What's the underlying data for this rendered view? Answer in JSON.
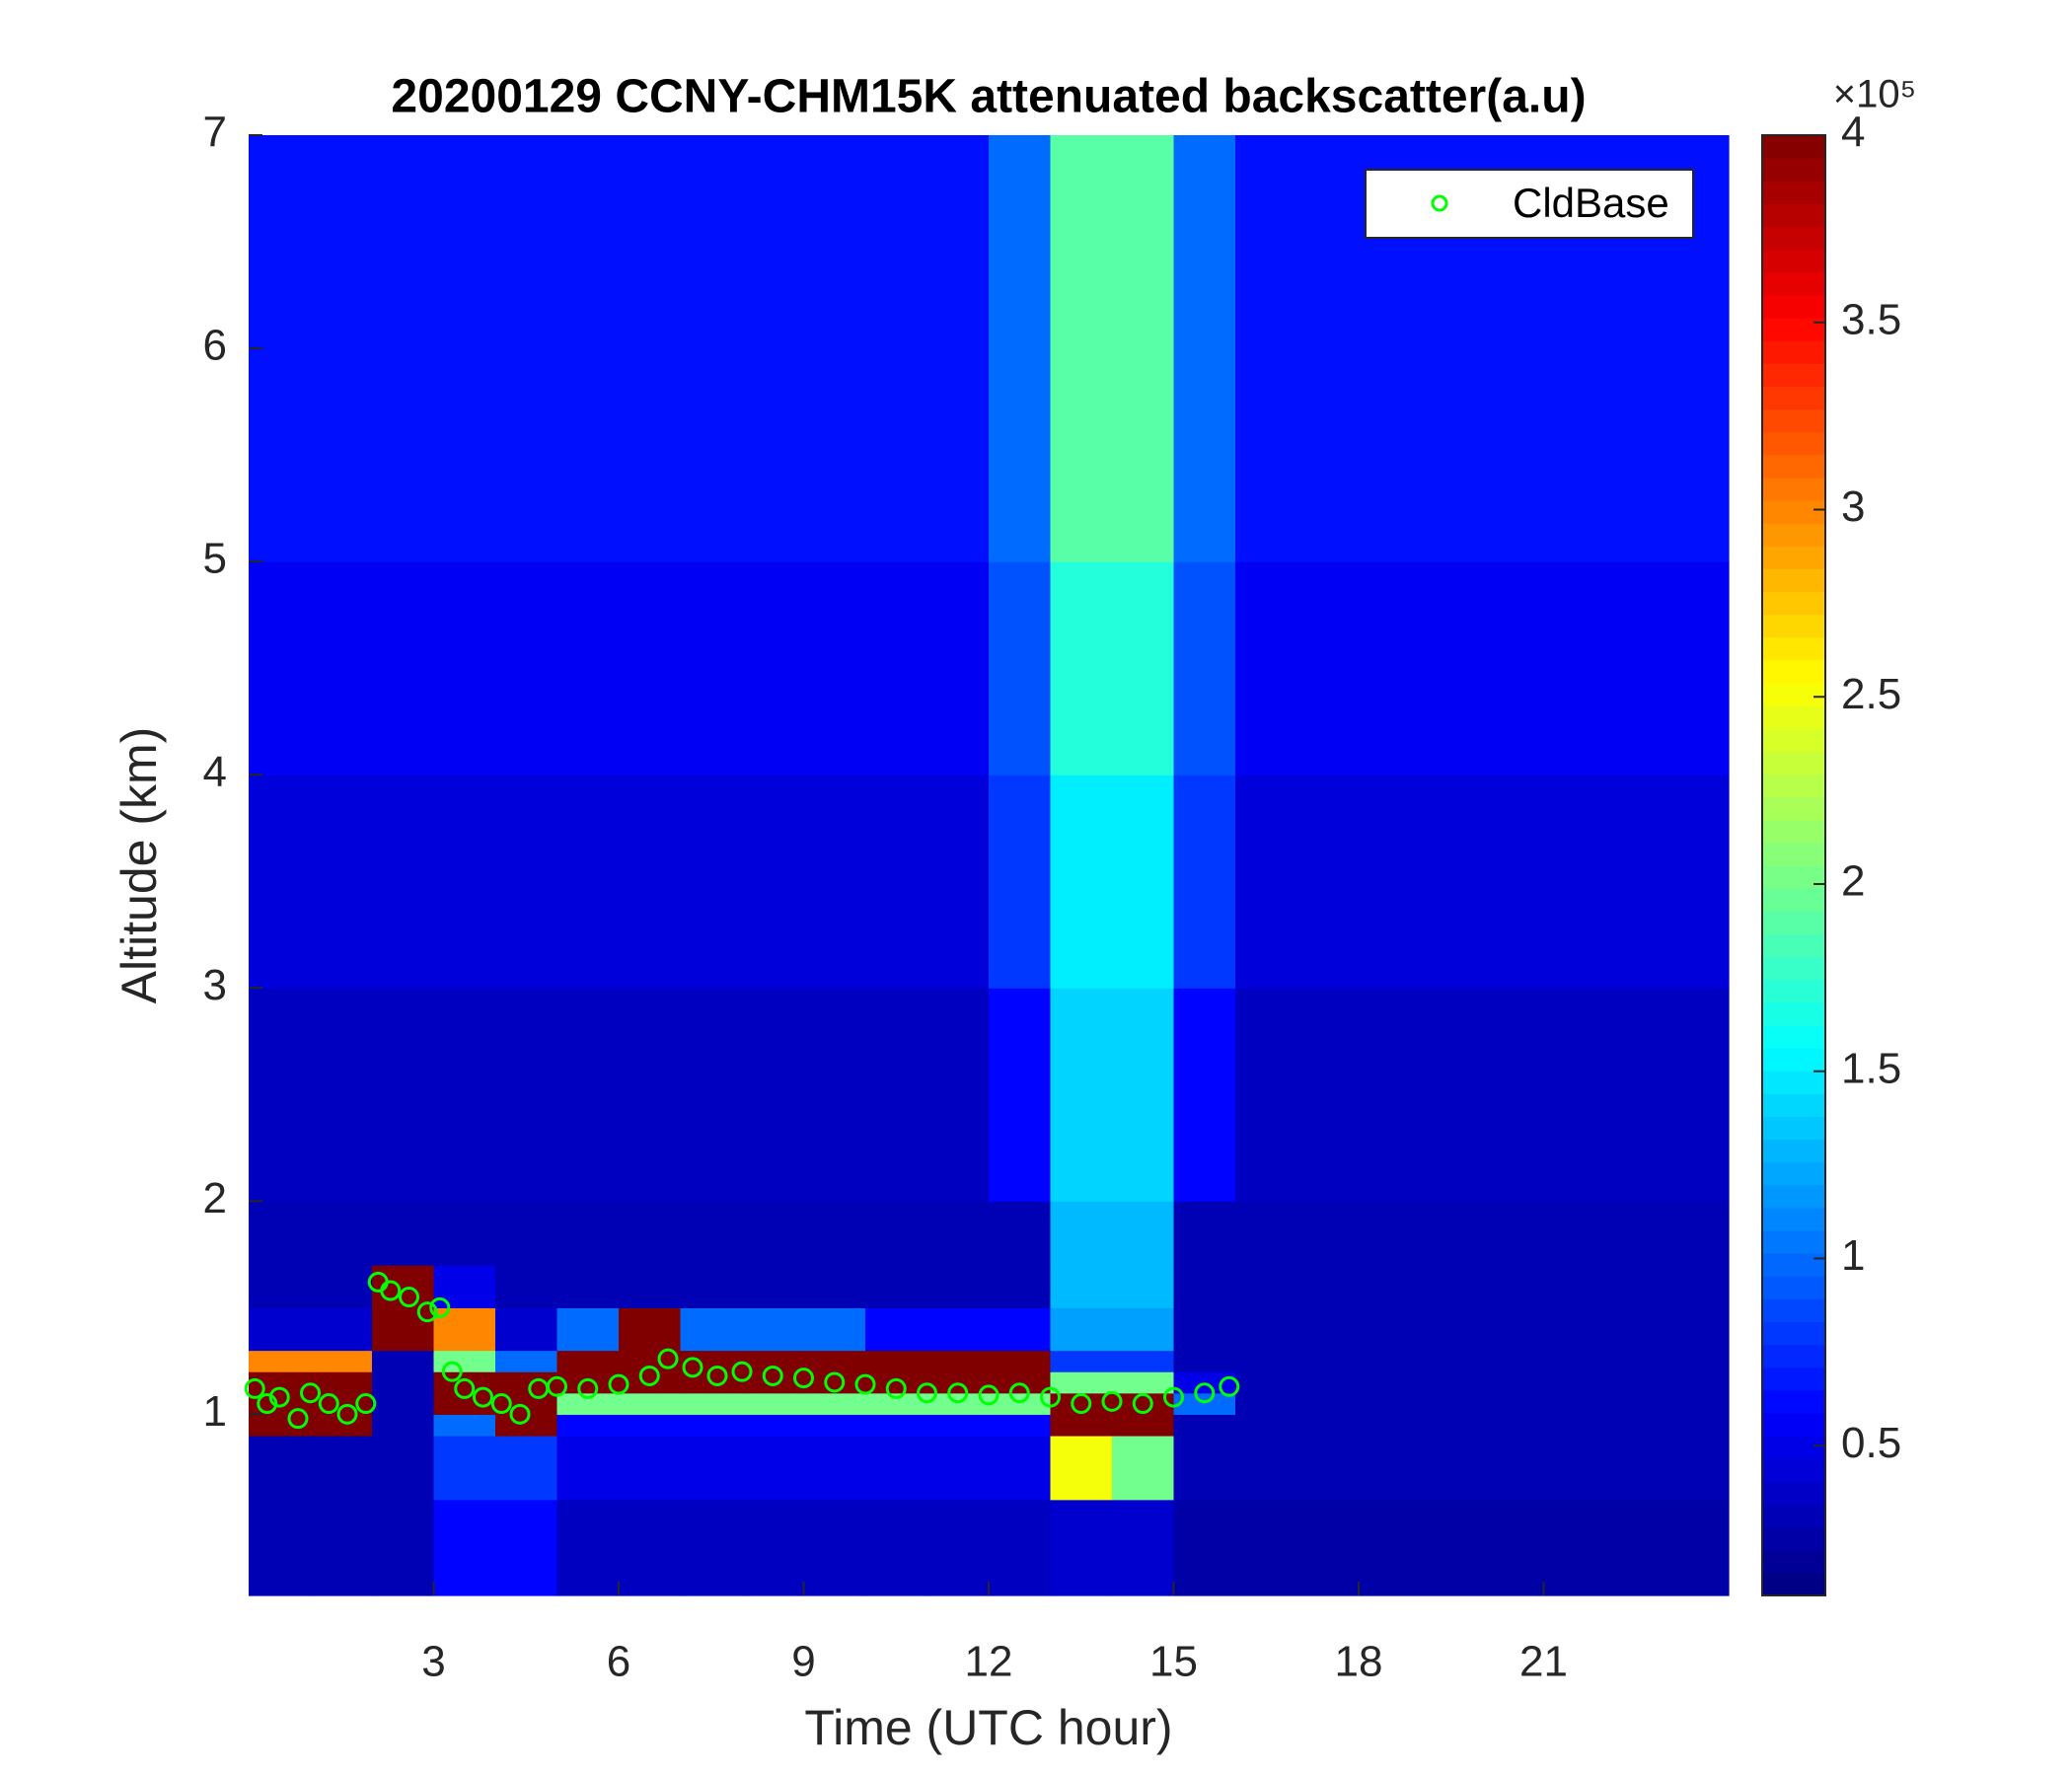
{
  "chart_data": {
    "type": "heatmap",
    "title": "20200129 CCNY-CHM15K attenuated backscatter(a.u)",
    "xlabel": "Time (UTC hour)",
    "ylabel": "Altitude (km)",
    "xlim": [
      0,
      24
    ],
    "xticks": [
      3,
      6,
      9,
      12,
      15,
      18,
      21
    ],
    "ylim": [
      0.15,
      7
    ],
    "yticks": [
      1,
      2,
      3,
      4,
      5,
      6,
      7
    ],
    "colormap": "jet",
    "clim": [
      0.1,
      4
    ],
    "cticks": [
      0.5,
      1,
      1.5,
      2,
      2.5,
      3,
      3.5,
      4
    ],
    "color_multiplier": "×10⁵",
    "legend": "northeast",
    "x_edges": [
      0,
      1,
      2,
      3,
      4,
      5,
      6,
      7,
      8,
      9,
      10,
      11,
      12,
      13,
      14,
      15,
      16,
      17,
      18,
      19,
      20,
      21,
      22,
      23,
      24
    ],
    "y_edges": [
      0.15,
      0.6,
      0.9,
      1.0,
      1.1,
      1.2,
      1.3,
      1.5,
      1.7,
      2,
      3,
      4,
      5,
      7
    ],
    "values": [
      [
        0.3,
        0.3,
        0.3,
        0.6,
        0.6,
        0.35,
        0.35,
        0.35,
        0.35,
        0.35,
        0.35,
        0.35,
        0.35,
        0.4,
        0.4,
        0.25,
        0.25,
        0.25,
        0.25,
        0.25,
        0.25,
        0.25,
        0.25,
        0.25
      ],
      [
        0.3,
        0.3,
        0.3,
        0.8,
        0.8,
        0.5,
        0.5,
        0.5,
        0.5,
        0.5,
        0.5,
        0.5,
        0.5,
        2.5,
        2,
        0.3,
        0.3,
        0.3,
        0.3,
        0.3,
        0.3,
        0.3,
        0.3,
        0.3
      ],
      [
        4,
        4,
        0.3,
        1,
        4,
        0.6,
        0.6,
        0.6,
        0.6,
        0.6,
        0.6,
        0.6,
        0.6,
        4,
        4,
        0.3,
        0.3,
        0.3,
        0.3,
        0.3,
        0.3,
        0.3,
        0.3,
        0.3
      ],
      [
        4,
        4,
        0.3,
        4,
        4,
        2,
        2,
        2,
        2,
        2,
        2,
        2,
        2,
        4,
        4,
        1,
        0.3,
        0.3,
        0.3,
        0.3,
        0.3,
        0.3,
        0.3,
        0.3
      ],
      [
        4,
        4,
        0.3,
        4,
        4,
        4,
        4,
        4,
        4,
        4,
        4,
        4,
        4,
        2,
        2,
        0.5,
        0.3,
        0.3,
        0.3,
        0.3,
        0.3,
        0.3,
        0.3,
        0.3
      ],
      [
        3,
        3,
        0.3,
        2,
        1,
        4,
        4,
        4,
        4,
        4,
        4,
        4,
        4,
        0.8,
        0.8,
        0.3,
        0.3,
        0.3,
        0.3,
        0.3,
        0.3,
        0.3,
        0.3,
        0.3
      ],
      [
        0.4,
        0.4,
        4,
        3,
        0.4,
        1,
        4,
        1,
        1,
        1,
        0.6,
        0.6,
        0.6,
        1.2,
        1.2,
        0.3,
        0.3,
        0.3,
        0.3,
        0.3,
        0.3,
        0.3,
        0.3,
        0.3
      ],
      [
        0.3,
        0.3,
        4,
        0.5,
        0.3,
        0.3,
        0.3,
        0.3,
        0.3,
        0.3,
        0.3,
        0.3,
        0.3,
        1.3,
        1.3,
        0.3,
        0.3,
        0.3,
        0.3,
        0.3,
        0.3,
        0.3,
        0.3,
        0.3
      ],
      [
        0.3,
        0.3,
        0.3,
        0.3,
        0.3,
        0.3,
        0.3,
        0.3,
        0.3,
        0.3,
        0.3,
        0.3,
        0.3,
        1.3,
        1.3,
        0.3,
        0.3,
        0.3,
        0.3,
        0.3,
        0.3,
        0.3,
        0.3,
        0.3
      ],
      [
        0.35,
        0.35,
        0.35,
        0.35,
        0.35,
        0.35,
        0.35,
        0.35,
        0.35,
        0.35,
        0.35,
        0.35,
        0.6,
        1.4,
        1.4,
        0.6,
        0.35,
        0.35,
        0.35,
        0.35,
        0.35,
        0.35,
        0.35,
        0.35
      ],
      [
        0.45,
        0.45,
        0.45,
        0.45,
        0.45,
        0.45,
        0.45,
        0.45,
        0.45,
        0.45,
        0.45,
        0.45,
        0.8,
        1.5,
        1.5,
        0.8,
        0.45,
        0.45,
        0.45,
        0.45,
        0.45,
        0.45,
        0.45,
        0.45
      ],
      [
        0.55,
        0.55,
        0.55,
        0.55,
        0.55,
        0.55,
        0.55,
        0.55,
        0.55,
        0.55,
        0.55,
        0.55,
        0.9,
        1.7,
        1.7,
        0.9,
        0.55,
        0.55,
        0.55,
        0.55,
        0.55,
        0.55,
        0.55,
        0.55
      ],
      [
        0.65,
        0.65,
        0.65,
        0.65,
        0.65,
        0.65,
        0.65,
        0.65,
        0.65,
        0.65,
        0.65,
        0.65,
        1,
        1.9,
        1.9,
        1,
        0.65,
        0.65,
        0.65,
        0.65,
        0.65,
        0.65,
        0.65,
        0.65
      ]
    ],
    "series": [
      {
        "type": "scatter",
        "name": "CldBase",
        "color": "#00ff00",
        "x": [
          0.1,
          0.3,
          0.5,
          0.8,
          1.0,
          1.3,
          1.6,
          1.9,
          2.1,
          2.3,
          2.6,
          2.9,
          3.1,
          3.3,
          3.5,
          3.8,
          4.1,
          4.4,
          4.7,
          5.0,
          5.5,
          6.0,
          6.5,
          6.8,
          7.2,
          7.6,
          8,
          8.5,
          9,
          9.5,
          10,
          10.5,
          11,
          11.5,
          12,
          12.5,
          13,
          13.5,
          14,
          14.5,
          15,
          15.5,
          15.9
        ],
        "y": [
          1.12,
          1.05,
          1.08,
          0.98,
          1.1,
          1.05,
          1.0,
          1.05,
          1.62,
          1.58,
          1.55,
          1.48,
          1.5,
          1.2,
          1.12,
          1.08,
          1.05,
          1.0,
          1.12,
          1.13,
          1.12,
          1.14,
          1.18,
          1.26,
          1.22,
          1.18,
          1.2,
          1.18,
          1.17,
          1.15,
          1.14,
          1.12,
          1.1,
          1.1,
          1.09,
          1.1,
          1.08,
          1.05,
          1.06,
          1.05,
          1.08,
          1.1,
          1.13
        ]
      }
    ]
  }
}
